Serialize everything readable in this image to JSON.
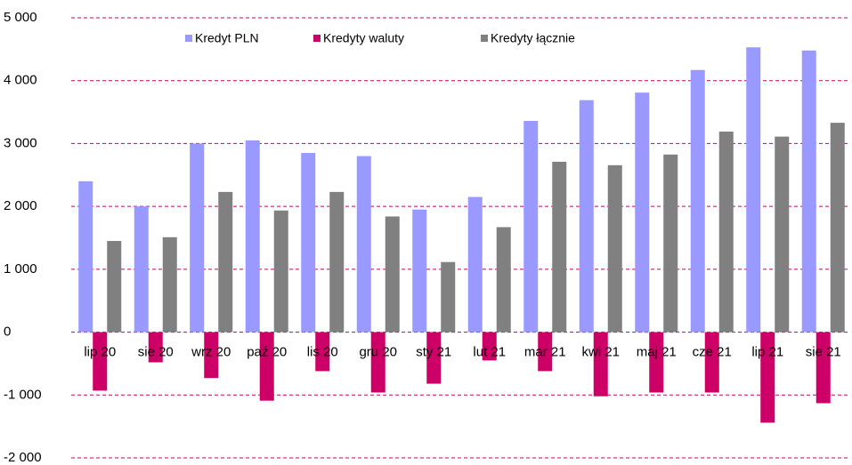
{
  "chart_data": {
    "type": "bar",
    "categories": [
      "lip 20",
      "sie 20",
      "wrz 20",
      "paź 20",
      "lis 20",
      "gru 20",
      "sty 21",
      "lut 21",
      "mar 21",
      "kwi 21",
      "maj 21",
      "cze 21",
      "lip 21",
      "sie 21"
    ],
    "series": [
      {
        "name": "Kredyt PLN",
        "color": "#9999ff",
        "values": [
          2400,
          2000,
          3000,
          3050,
          2850,
          2800,
          1950,
          2150,
          3360,
          3690,
          3810,
          4170,
          4530,
          4480
        ]
      },
      {
        "name": "Kredyty waluty",
        "color": "#cc0066",
        "values": [
          -930,
          -480,
          -730,
          -1090,
          -620,
          -960,
          -820,
          -450,
          -620,
          -1020,
          -960,
          -960,
          -1440,
          -1130
        ]
      },
      {
        "name": "Kredyty łącznie",
        "color": "#808080",
        "values": [
          1450,
          1510,
          2230,
          1935,
          2230,
          1840,
          1115,
          1670,
          2710,
          2655,
          2825,
          3190,
          3110,
          3330
        ]
      }
    ],
    "ylim": [
      -2000,
      5000
    ],
    "yticks": [
      {
        "value": -2000,
        "label": "-2 000"
      },
      {
        "value": -1000,
        "label": "-1 000"
      },
      0,
      {
        "value": 1000,
        "label": "1 000"
      },
      {
        "value": 2000,
        "label": "2 000"
      },
      {
        "value": 3000,
        "label": "3 000"
      },
      {
        "value": 4000,
        "label": "4 000"
      },
      {
        "value": 5000,
        "label": "5 000"
      }
    ],
    "grid": true,
    "grid_color": "#cc0066",
    "legend": "top"
  }
}
